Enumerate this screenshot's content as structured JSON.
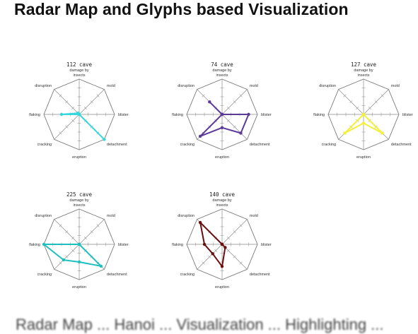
{
  "page": {
    "title": "Radar Map and Glyphs based Visualization",
    "caption": "Radar Map ... Hanoi ... Visualization ... Highlighting ..."
  },
  "chart_data": {
    "type": "radar",
    "axes": [
      "damage by insects",
      "mold",
      "blister",
      "detachment",
      "eruption",
      "cracking",
      "flaking",
      "disruption"
    ],
    "max": 4,
    "rings": 4,
    "charts": [
      {
        "title": "112 cave",
        "color": "#35d6dc",
        "values": [
          0,
          0,
          0,
          4,
          0,
          0,
          2,
          0.2
        ]
      },
      {
        "title": "74 cave",
        "color": "#5b3a9b",
        "values": [
          0,
          0,
          3,
          3,
          1.5,
          3.5,
          0,
          2
        ]
      },
      {
        "title": "127 cave",
        "color": "#f4f03a",
        "values": [
          0,
          0,
          0,
          3,
          1,
          3,
          0,
          0
        ]
      },
      {
        "title": "225 cave",
        "color": "#1fbfc0",
        "values": [
          0,
          0,
          0,
          3.5,
          2,
          2.5,
          4,
          0
        ]
      },
      {
        "title": "140 cave",
        "color": "#6a0e0e",
        "values": [
          0,
          0,
          0,
          0.5,
          2.5,
          1.5,
          2,
          3.5
        ]
      }
    ]
  }
}
